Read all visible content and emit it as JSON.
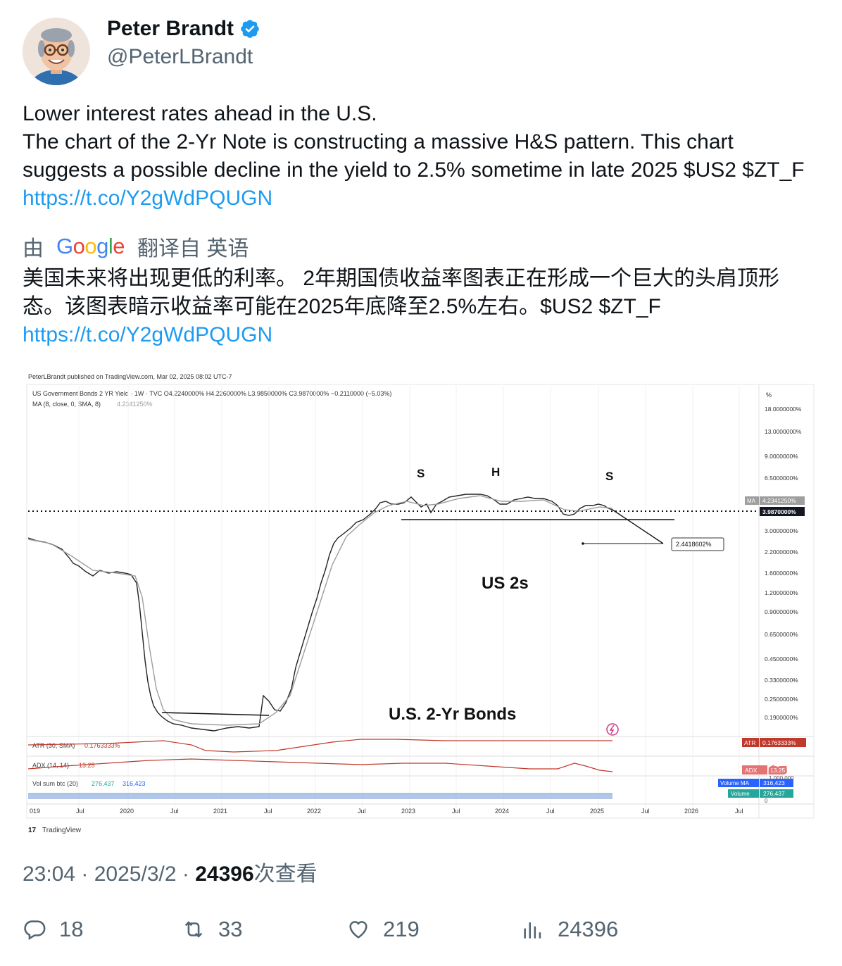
{
  "author": {
    "name": "Peter Brandt",
    "handle": "@PeterLBrandt"
  },
  "tweet": {
    "line1": "Lower interest rates ahead in the U.S.",
    "line2": "The chart of the 2-Yr Note is constructing a massive H&S pattern. This chart suggests a possible decline in the yield to 2.5% sometime in late 2025 $US2 $ZT_F ",
    "link": "https://t.co/Y2gWdPQUGN"
  },
  "translation": {
    "prefix": "由",
    "google": "Google",
    "suffix": "翻译自 英语",
    "text": "美国未来将出现更低的利率。 2年期国债收益率图表正在形成一个巨大的头肩顶形态。该图表暗示收益率可能在2025年底降至2.5%左右。$US2 $ZT_F",
    "link": "https://t.co/Y2gWdPQUGN"
  },
  "chart_image": {
    "published": "PeterLBrandt published on TradingView.com, Mar 02, 2025 08:02 UTC-7",
    "symbol_line": "US Government Bonds 2 YR Yield · 1W · TVC  O4.2240000%  H4.2260000%  L3.9850000%  C3.9870000%  −0.2110000 (−5.03%)",
    "ma_line": "MA (8, close, 0, SMA, 8)",
    "ma_value": "4.2341250%",
    "y_unit": "%",
    "y_ticks": [
      "18.0000000%",
      "13.0000000%",
      "9.0000000%",
      "6.5000000%",
      "3.0000000%",
      "2.2000000%",
      "1.6000000%",
      "1.2000000%",
      "0.9000000%",
      "0.6500000%",
      "0.4500000%",
      "0.3300000%",
      "0.2500000%",
      "0.1900000%"
    ],
    "ma_tag": "MA",
    "ma_tag_value": "4.2341250%",
    "last_price": "3.9870000%",
    "target_label": "2.4418602%",
    "pattern_s1": "S",
    "pattern_h": "H",
    "pattern_s2": "S",
    "annotation_1": "US 2s",
    "annotation_2": "U.S. 2-Yr Bonds",
    "atr_label": "ATR (30, SMA)",
    "atr_value": "0.1763333%",
    "atr_tag": "ATR",
    "atr_tag_value": "0.1763333%",
    "adx_label": "ADX (14, 14)",
    "adx_value": "13.25",
    "adx_tag": "ADX",
    "adx_tag_value": "13.25",
    "vol_label": "Vol sum btc (20)",
    "vol_ma": "276,437",
    "vol_sum": "316,423",
    "vol_tag_ma": "Volume MA",
    "vol_tag_ma_value": "316,423",
    "vol_tag": "Volume",
    "vol_tag_value": "276,437",
    "vol_axis": "1,000,000",
    "vol_zero": "0",
    "x_ticks": [
      "019",
      "Jul",
      "2020",
      "Jul",
      "2021",
      "Jul",
      "2022",
      "Jul",
      "2023",
      "Jul",
      "2024",
      "Jul",
      "2025",
      "Jul",
      "2026",
      "Jul"
    ],
    "footer": "TradingView",
    "tv_logo": "17"
  },
  "meta": {
    "time": "23:04",
    "sep1": " · ",
    "date": "2025/3/2",
    "sep2": " · ",
    "views": "24396",
    "views_label": "次查看"
  },
  "actions": {
    "replies": "18",
    "retweets": "33",
    "likes": "219",
    "views": "24396"
  }
}
